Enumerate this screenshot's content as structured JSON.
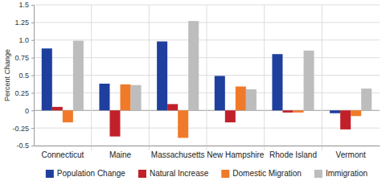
{
  "chart_data": {
    "type": "bar",
    "y_label": "Percent Change",
    "categories": [
      "Connecticut",
      "Maine",
      "Massachusetts",
      "New Hampshire",
      "Rhode Island",
      "Vermont"
    ],
    "series": [
      {
        "name": "Population Change",
        "color": "#1f3f9e",
        "values": [
          0.88,
          0.38,
          0.98,
          0.49,
          0.8,
          -0.04
        ]
      },
      {
        "name": "Natural Increase",
        "color": "#c1202b",
        "values": [
          0.05,
          -0.37,
          0.09,
          -0.17,
          -0.03,
          -0.27
        ]
      },
      {
        "name": "Domestic Migration",
        "color": "#f07a2a",
        "values": [
          -0.17,
          0.37,
          -0.39,
          0.34,
          -0.03,
          -0.08
        ]
      },
      {
        "name": "Immigration",
        "color": "#bdbdbd",
        "values": [
          0.99,
          0.36,
          1.27,
          0.3,
          0.85,
          0.31
        ]
      }
    ],
    "ylim": [
      -0.5,
      1.5
    ],
    "yticks": [
      -0.5,
      -0.25,
      0,
      0.25,
      {
        "value": 0.5,
        "label": "0.5"
      },
      0.75,
      {
        "value": 1,
        "label": "1.0"
      },
      1.25,
      1.5
    ],
    "grid": true,
    "legend": "bottom"
  }
}
